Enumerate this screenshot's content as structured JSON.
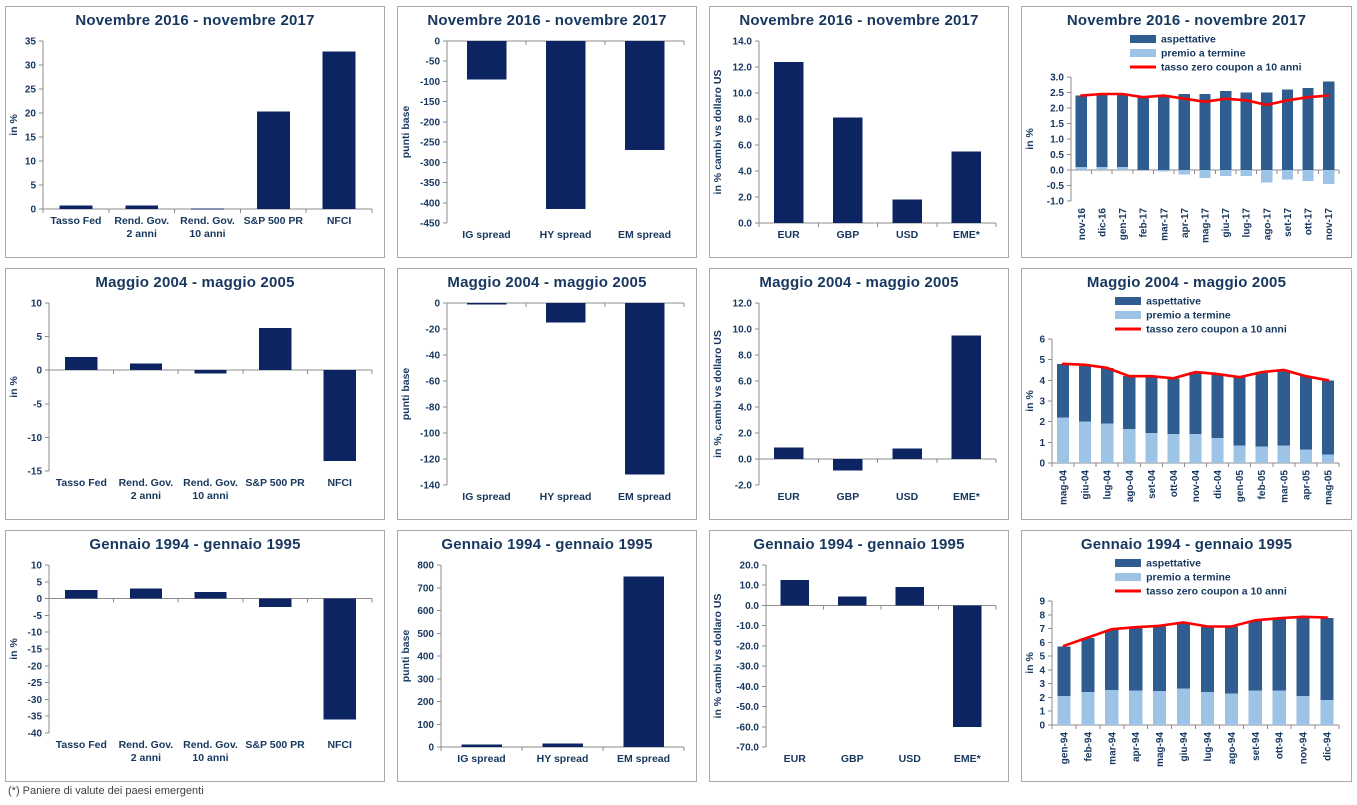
{
  "footer": "(*) Paniere di valute dei paesi emergenti",
  "colors": {
    "navy_bar": "#0d2463",
    "aspettative_blue": "#2f5d8f",
    "premio_light_blue": "#9dc3e6",
    "line_red": "#fe0000",
    "text_navy": "#17375e",
    "axis_gray": "#8c8c8c"
  },
  "chart_data": [
    {
      "type": "bar",
      "title": "Novembre 2016 - novembre 2017",
      "ylabel": "in %",
      "ylim": [
        0,
        35
      ],
      "ystep": 5,
      "ydecimals": 0,
      "grid": false,
      "categories": [
        "Tasso Fed",
        "Rend. Gov.\n2 anni",
        "Rend. Gov.\n10 anni",
        "S&P 500 PR",
        "NFCI"
      ],
      "values": [
        0.7,
        0.7,
        0.1,
        20.3,
        32.8
      ]
    },
    {
      "type": "bar",
      "title": "Novembre 2016 - novembre 2017",
      "ylabel": "punti base",
      "ylim": [
        -450,
        0
      ],
      "ystep": 50,
      "ydecimals": 0,
      "grid": false,
      "categories": [
        "IG spread",
        "HY spread",
        "EM spread"
      ],
      "values": [
        -95,
        -415,
        -270
      ]
    },
    {
      "type": "bar",
      "title": "Novembre 2016 - novembre 2017",
      "ylabel": "in % cambi vs dollaro US",
      "ylim": [
        0,
        14
      ],
      "ystep": 2,
      "ydecimals": 1,
      "grid": false,
      "categories": [
        "EUR",
        "GBP",
        "USD",
        "EME*"
      ],
      "values": [
        12.4,
        8.1,
        1.8,
        5.5
      ]
    },
    {
      "type": "stacked-bar-line",
      "title": "Novembre 2016 - novembre 2017",
      "ylabel": "in %",
      "ylim": [
        -1,
        3
      ],
      "ystep": 0.5,
      "ydecimals": 1,
      "grid": false,
      "rotate_x": true,
      "legend_position": "top",
      "categories": [
        "nov-16",
        "dic-16",
        "gen-17",
        "feb-17",
        "mar-17",
        "apr-17",
        "mag-17",
        "giu-17",
        "lug-17",
        "ago-17",
        "set-17",
        "ott-17",
        "nov-17"
      ],
      "series": [
        {
          "name": "aspettative",
          "values": [
            2.3,
            2.35,
            2.35,
            2.35,
            2.4,
            2.45,
            2.45,
            2.55,
            2.5,
            2.5,
            2.6,
            2.65,
            2.85
          ]
        },
        {
          "name": "premio a termine",
          "values": [
            0.1,
            0.1,
            0.1,
            0.0,
            -0.05,
            -0.15,
            -0.25,
            -0.2,
            -0.2,
            -0.4,
            -0.3,
            -0.35,
            -0.45
          ]
        }
      ],
      "line": {
        "name": "tasso zero coupon a 10 anni",
        "values": [
          2.4,
          2.45,
          2.45,
          2.35,
          2.4,
          2.3,
          2.2,
          2.3,
          2.25,
          2.1,
          2.25,
          2.35,
          2.4
        ]
      }
    },
    {
      "type": "bar",
      "title": "Maggio 2004 - maggio 2005",
      "ylabel": "in %",
      "ylim": [
        -15,
        10
      ],
      "ystep": 5,
      "ydecimals": 0,
      "grid": false,
      "categories": [
        "Tasso Fed",
        "Rend. Gov.\n2 anni",
        "Rend. Gov.\n10 anni",
        "S&P 500 PR",
        "NFCI"
      ],
      "values": [
        2.0,
        1.0,
        -0.5,
        6.3,
        -13.5
      ]
    },
    {
      "type": "bar",
      "title": "Maggio 2004 - maggio 2005",
      "ylabel": "punti base",
      "ylim": [
        -140,
        0
      ],
      "ystep": 20,
      "ydecimals": 0,
      "grid": false,
      "categories": [
        "IG spread",
        "HY spread",
        "EM spread"
      ],
      "values": [
        -1,
        -15,
        -132
      ]
    },
    {
      "type": "bar",
      "title": "Maggio 2004 - maggio 2005",
      "ylabel": "in %, cambi vs dollaro US",
      "ylim": [
        -2,
        12
      ],
      "ystep": 2,
      "ydecimals": 1,
      "grid": false,
      "categories": [
        "EUR",
        "GBP",
        "USD",
        "EME*"
      ],
      "values": [
        0.9,
        -0.9,
        0.8,
        9.5
      ]
    },
    {
      "type": "stacked-bar-line",
      "title": "Maggio 2004 - maggio 2005",
      "ylabel": "in %",
      "ylim": [
        0,
        6
      ],
      "ystep": 1,
      "ydecimals": 0,
      "grid": false,
      "rotate_x": true,
      "legend_position": "top",
      "categories": [
        "mag-04",
        "giu-04",
        "lug-04",
        "ago-04",
        "set-04",
        "ott-04",
        "nov-04",
        "dic-04",
        "gen-05",
        "feb-05",
        "mar-05",
        "apr-05",
        "mag-05"
      ],
      "series": [
        {
          "name": "aspettative",
          "values": [
            2.6,
            2.7,
            2.7,
            2.55,
            2.7,
            2.7,
            3.0,
            3.1,
            3.3,
            3.55,
            3.65,
            3.55,
            3.6
          ]
        },
        {
          "name": "premio a termine",
          "values": [
            2.2,
            2.0,
            1.9,
            1.65,
            1.45,
            1.4,
            1.4,
            1.2,
            0.85,
            0.8,
            0.85,
            0.65,
            0.4
          ]
        }
      ],
      "line": {
        "name": "tasso zero coupon a 10 anni",
        "values": [
          4.8,
          4.75,
          4.6,
          4.2,
          4.2,
          4.1,
          4.4,
          4.3,
          4.15,
          4.4,
          4.5,
          4.2,
          4.0
        ]
      }
    },
    {
      "type": "bar",
      "title": "Gennaio 1994 - gennaio 1995",
      "ylabel": "in %",
      "ylim": [
        -40,
        10
      ],
      "ystep": 5,
      "ydecimals": 0,
      "grid": false,
      "categories": [
        "Tasso Fed",
        "Rend. Gov.\n2 anni",
        "Rend. Gov.\n10 anni",
        "S&P 500 PR",
        "NFCI"
      ],
      "values": [
        2.5,
        3.0,
        2.0,
        -2.5,
        -36.0
      ]
    },
    {
      "type": "bar",
      "title": "Gennaio 1994 - gennaio 1995",
      "ylabel": "punti base",
      "ylim": [
        0,
        800
      ],
      "ystep": 100,
      "ydecimals": 0,
      "grid": false,
      "categories": [
        "IG spread",
        "HY spread",
        "EM spread"
      ],
      "values": [
        10,
        15,
        750
      ]
    },
    {
      "type": "bar",
      "title": "Gennaio 1994 - gennaio 1995",
      "ylabel": "in % cambi vs dollaro US",
      "ylim": [
        -70,
        20
      ],
      "ystep": 10,
      "ydecimals": 1,
      "grid": false,
      "categories": [
        "EUR",
        "GBP",
        "USD",
        "EME*"
      ],
      "values": [
        12.5,
        4.5,
        9.0,
        -60.0
      ]
    },
    {
      "type": "stacked-bar-line",
      "title": "Gennaio 1994 - gennaio 1995",
      "ylabel": "in %",
      "ylim": [
        0,
        9
      ],
      "ystep": 1,
      "ydecimals": 0,
      "grid": false,
      "rotate_x": true,
      "legend_position": "top",
      "categories": [
        "gen-94",
        "feb-94",
        "mar-94",
        "apr-94",
        "mag-94",
        "giu-94",
        "lug-94",
        "ago-94",
        "set-94",
        "ott-94",
        "nov-94",
        "dic-94"
      ],
      "series": [
        {
          "name": "aspettative",
          "values": [
            3.6,
            3.9,
            4.35,
            4.6,
            4.7,
            4.8,
            4.7,
            4.85,
            5.1,
            5.25,
            5.7,
            5.95
          ]
        },
        {
          "name": "premio a termine",
          "values": [
            2.1,
            2.4,
            2.55,
            2.5,
            2.45,
            2.65,
            2.4,
            2.3,
            2.5,
            2.5,
            2.1,
            1.8
          ]
        }
      ],
      "line": {
        "name": "tasso zero coupon a 10 anni",
        "values": [
          5.75,
          6.35,
          6.95,
          7.1,
          7.2,
          7.45,
          7.15,
          7.15,
          7.6,
          7.75,
          7.85,
          7.8
        ]
      }
    }
  ]
}
